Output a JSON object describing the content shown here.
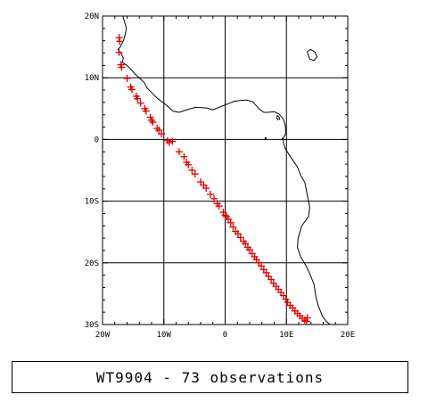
{
  "map": {
    "lon_range": [
      -20,
      20
    ],
    "lat_range": [
      -30,
      20
    ],
    "lon_ticks": [
      {
        "value": -20,
        "label": "20W"
      },
      {
        "value": -10,
        "label": "10W"
      },
      {
        "value": 0,
        "label": "0"
      },
      {
        "value": 10,
        "label": "10E"
      },
      {
        "value": 20,
        "label": "20E"
      }
    ],
    "lat_ticks": [
      {
        "value": 20,
        "label": "20N"
      },
      {
        "value": 10,
        "label": "10N"
      },
      {
        "value": 0,
        "label": "0"
      },
      {
        "value": -10,
        "label": "10S"
      },
      {
        "value": -20,
        "label": "20S"
      },
      {
        "value": -30,
        "label": "30S"
      }
    ],
    "gridlines": true,
    "coast_color": "#000000",
    "marker_color": "#e00000",
    "marker_symbol": "+"
  },
  "coastline": [
    [
      -16.7,
      20.0
    ],
    [
      -16.4,
      19.0
    ],
    [
      -16.1,
      18.0
    ],
    [
      -16.3,
      17.0
    ],
    [
      -16.6,
      16.0
    ],
    [
      -17.1,
      15.0
    ],
    [
      -17.5,
      14.6
    ],
    [
      -17.0,
      14.0
    ],
    [
      -16.6,
      13.2
    ],
    [
      -16.8,
      12.5
    ],
    [
      -16.0,
      12.0
    ],
    [
      -15.3,
      11.3
    ],
    [
      -14.7,
      10.6
    ],
    [
      -13.8,
      9.8
    ],
    [
      -13.2,
      9.2
    ],
    [
      -12.7,
      8.3
    ],
    [
      -11.8,
      7.4
    ],
    [
      -11.0,
      6.6
    ],
    [
      -10.0,
      5.9
    ],
    [
      -8.5,
      4.6
    ],
    [
      -7.5,
      4.4
    ],
    [
      -6.0,
      4.9
    ],
    [
      -4.8,
      5.2
    ],
    [
      -3.0,
      5.1
    ],
    [
      -2.0,
      4.8
    ],
    [
      -1.0,
      5.2
    ],
    [
      0.5,
      5.8
    ],
    [
      1.5,
      6.2
    ],
    [
      2.5,
      6.3
    ],
    [
      3.5,
      6.4
    ],
    [
      4.5,
      6.1
    ],
    [
      5.5,
      5.0
    ],
    [
      6.3,
      4.4
    ],
    [
      7.0,
      4.4
    ],
    [
      8.0,
      4.5
    ],
    [
      8.8,
      4.1
    ],
    [
      9.5,
      3.3
    ],
    [
      9.8,
      2.3
    ],
    [
      9.9,
      1.0
    ],
    [
      9.5,
      0.3
    ],
    [
      9.5,
      -0.5
    ],
    [
      9.8,
      -1.5
    ],
    [
      10.8,
      -3.0
    ],
    [
      11.8,
      -4.5
    ],
    [
      12.3,
      -5.8
    ],
    [
      13.0,
      -7.0
    ],
    [
      13.4,
      -9.0
    ],
    [
      13.8,
      -11.0
    ],
    [
      13.6,
      -12.5
    ],
    [
      12.5,
      -14.0
    ],
    [
      11.9,
      -16.0
    ],
    [
      11.8,
      -17.5
    ],
    [
      12.3,
      -19.0
    ],
    [
      13.2,
      -20.5
    ],
    [
      13.9,
      -22.0
    ],
    [
      14.5,
      -23.5
    ],
    [
      14.8,
      -25.5
    ],
    [
      15.2,
      -27.0
    ],
    [
      15.9,
      -28.7
    ],
    [
      16.6,
      -29.6
    ],
    [
      17.1,
      -30.0
    ]
  ],
  "islands": [
    [
      [
        13.4,
        14.2
      ],
      [
        13.9,
        14.6
      ],
      [
        14.6,
        14.2
      ],
      [
        15.0,
        13.4
      ],
      [
        14.5,
        12.8
      ],
      [
        13.8,
        13.0
      ],
      [
        13.6,
        13.6
      ],
      [
        13.4,
        14.2
      ]
    ],
    [
      [
        8.5,
        3.9
      ],
      [
        8.8,
        3.6
      ],
      [
        8.9,
        3.3
      ],
      [
        8.6,
        3.2
      ],
      [
        8.4,
        3.5
      ],
      [
        8.5,
        3.9
      ]
    ]
  ],
  "small_islands": [
    [
      6.6,
      0.2
    ],
    [
      9.4,
      0.1
    ]
  ],
  "observations": [
    [
      -17.3,
      16.5
    ],
    [
      -17.2,
      15.9
    ],
    [
      -17.3,
      14.1
    ],
    [
      -17.0,
      12.1
    ],
    [
      -16.9,
      11.7
    ],
    [
      -16.0,
      9.9
    ],
    [
      -15.4,
      8.5
    ],
    [
      -15.2,
      8.1
    ],
    [
      -14.5,
      7.0
    ],
    [
      -14.3,
      6.6
    ],
    [
      -13.8,
      5.9
    ],
    [
      -13.1,
      5.0
    ],
    [
      -12.9,
      4.6
    ],
    [
      -12.2,
      3.6
    ],
    [
      -12.0,
      3.1
    ],
    [
      -11.8,
      2.8
    ],
    [
      -11.1,
      1.8
    ],
    [
      -10.8,
      1.5
    ],
    [
      -10.4,
      0.9
    ],
    [
      -9.4,
      -0.2
    ],
    [
      -9.1,
      -0.5
    ],
    [
      -7.5,
      -2.0
    ],
    [
      -6.3,
      -3.7
    ],
    [
      -6.0,
      -4.1
    ],
    [
      -5.4,
      -5.0
    ],
    [
      -4.9,
      -5.6
    ],
    [
      -4.0,
      -6.9
    ],
    [
      -3.5,
      -7.4
    ],
    [
      -2.4,
      -8.9
    ],
    [
      -1.3,
      -10.4
    ],
    [
      -1.0,
      -10.8
    ],
    [
      -0.3,
      -11.8
    ],
    [
      0.0,
      -12.3
    ],
    [
      0.5,
      -12.9
    ],
    [
      0.9,
      -13.5
    ],
    [
      1.3,
      -14.2
    ],
    [
      1.7,
      -14.9
    ],
    [
      2.1,
      -15.3
    ],
    [
      2.5,
      -15.9
    ],
    [
      3.0,
      -16.5
    ],
    [
      3.3,
      -16.9
    ],
    [
      3.7,
      -17.5
    ],
    [
      4.0,
      -17.9
    ],
    [
      4.4,
      -18.5
    ],
    [
      4.8,
      -19.0
    ],
    [
      5.1,
      -19.5
    ],
    [
      5.5,
      -20.0
    ],
    [
      5.9,
      -20.5
    ],
    [
      6.3,
      -21.1
    ],
    [
      6.7,
      -21.6
    ],
    [
      7.1,
      -22.2
    ],
    [
      7.5,
      -22.7
    ],
    [
      7.9,
      -23.3
    ],
    [
      8.3,
      -23.8
    ],
    [
      8.7,
      -24.3
    ],
    [
      9.1,
      -24.8
    ],
    [
      9.5,
      -25.3
    ],
    [
      9.9,
      -25.9
    ],
    [
      10.2,
      -26.4
    ],
    [
      10.6,
      -26.9
    ],
    [
      11.0,
      -27.3
    ],
    [
      11.4,
      -27.8
    ],
    [
      11.8,
      -28.2
    ],
    [
      12.2,
      -28.6
    ],
    [
      12.6,
      -29.0
    ],
    [
      13.0,
      -29.3
    ],
    [
      13.3,
      -29.5
    ],
    [
      -8.6,
      -0.3
    ],
    [
      -6.7,
      -2.8
    ],
    [
      -3.1,
      -7.9
    ],
    [
      -1.8,
      -9.6
    ],
    [
      0.2,
      -12.5
    ],
    [
      13.4,
      -28.9
    ]
  ],
  "caption": "WT9904 - 73 observations"
}
